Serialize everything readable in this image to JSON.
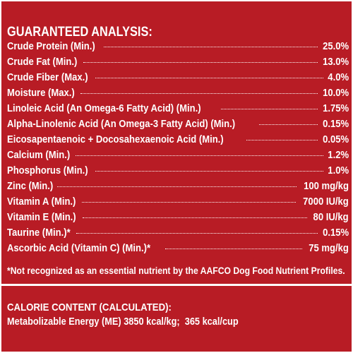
{
  "guaranteed_analysis": {
    "title": "GUARANTEED ANALYSIS:",
    "rows": [
      {
        "name": "Crude Protein (Min.)",
        "value": "25.0%"
      },
      {
        "name": "Crude Fat (Min.)",
        "value": "13.0%"
      },
      {
        "name": "Crude Fiber (Max.)",
        "value": "4.0%"
      },
      {
        "name": "Moisture (Max.)",
        "value": "10.0%"
      },
      {
        "name": "Linoleic Acid (An Omega-6 Fatty Acid) (Min.)",
        "value": "1.75%"
      },
      {
        "name": "Alpha-Linolenic Acid (An Omega-3 Fatty Acid) (Min.)",
        "value": "0.15%"
      },
      {
        "name": "Eicosapentaenoic + Docosahexaenoic Acid (Min.)",
        "value": "0.05%"
      },
      {
        "name": "Calcium (Min.)",
        "value": "1.2%"
      },
      {
        "name": "Phosphorus (Min.)",
        "value": "1.0%"
      },
      {
        "name": "Zinc (Min.)",
        "value": "100 mg/kg"
      },
      {
        "name": "Vitamin A (Min.)",
        "value": "7000 IU/kg"
      },
      {
        "name": "Vitamin E (Min.)",
        "value": "80 IU/kg"
      },
      {
        "name": "Taurine (Min.)*",
        "value": "0.15%"
      },
      {
        "name": "Ascorbic Acid (Vitamin C) (Min.)*",
        "value": "75 mg/kg"
      }
    ],
    "footnote": "*Not recognized as an essential nutrient by the AAFCO Dog Food Nutrient Profiles."
  },
  "calorie_content": {
    "title": "CALORIE CONTENT (CALCULATED):",
    "line": "Metabolizable Energy (ME) 3850 kcal/kg;  365 kcal/cup"
  },
  "colors": {
    "background": "#b81c25",
    "text": "#ffffff"
  }
}
